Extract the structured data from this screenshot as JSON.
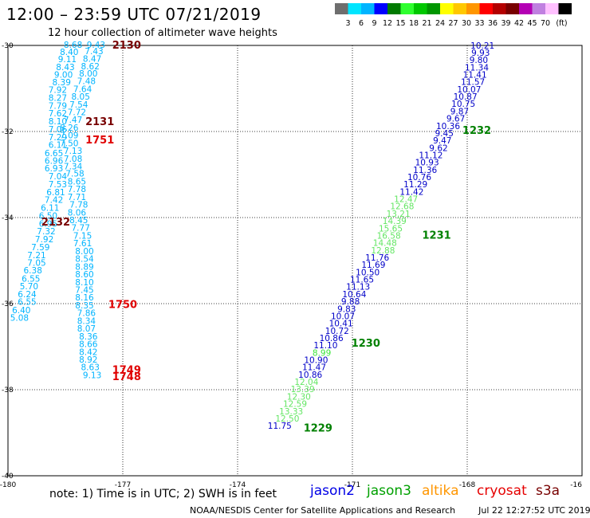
{
  "header": {
    "title": "12:00 – 23:59 UTC 07/21/2019",
    "subtitle": "12 hour collection of altimeter wave heights"
  },
  "colorbar": {
    "colors": [
      "#6e6e6e",
      "#00e5ff",
      "#00b4ff",
      "#0000ff",
      "#007a00",
      "#2fff2f",
      "#00c800",
      "#009600",
      "#ffff00",
      "#ffc800",
      "#ff9600",
      "#ff0000",
      "#b40000",
      "#780000",
      "#b400b4",
      "#c080e0",
      "#ffc0ff",
      "#000000"
    ],
    "labels": [
      "3",
      "6",
      "9",
      "12",
      "15",
      "18",
      "21",
      "24",
      "27",
      "30",
      "33",
      "36",
      "39",
      "42",
      "45",
      "70",
      "(ft)"
    ]
  },
  "axes": {
    "lon_ticks": [
      "-180",
      "-177",
      "-174",
      "-171",
      "-168",
      "-16"
    ],
    "lat_ticks": [
      "-30",
      "-32",
      "-34",
      "-36",
      "-38",
      "-40"
    ]
  },
  "tracks": [
    {
      "sat": "s3a",
      "color": "#00b4ff",
      "points": [
        {
          "lat": -30.06,
          "lon": -178.3,
          "v": "8.68"
        },
        {
          "lat": -30.22,
          "lon": -178.4,
          "v": "8.40"
        },
        {
          "lat": -30.39,
          "lon": -178.45,
          "v": "9.11"
        },
        {
          "lat": -30.57,
          "lon": -178.5,
          "v": "8.43"
        },
        {
          "lat": -30.75,
          "lon": -178.55,
          "v": "9.00"
        },
        {
          "lat": -30.93,
          "lon": -178.6,
          "v": "8.39"
        },
        {
          "lat": -31.1,
          "lon": -178.7,
          "v": "7.92"
        },
        {
          "lat": -31.29,
          "lon": -178.7,
          "v": "8.27"
        },
        {
          "lat": -31.47,
          "lon": -178.7,
          "v": "7.79"
        },
        {
          "lat": -31.65,
          "lon": -178.7,
          "v": "7.62"
        },
        {
          "lat": -31.83,
          "lon": -178.7,
          "v": "8.10"
        },
        {
          "lat": -32.02,
          "lon": -178.7,
          "v": "7.06"
        },
        {
          "lat": -32.2,
          "lon": -178.7,
          "v": "7.29"
        },
        {
          "lat": -32.38,
          "lon": -178.7,
          "v": "6.11"
        },
        {
          "lat": -32.57,
          "lon": -178.8,
          "v": "6.65"
        },
        {
          "lat": -32.75,
          "lon": -178.8,
          "v": "6.96"
        },
        {
          "lat": -32.93,
          "lon": -178.8,
          "v": "6.93"
        },
        {
          "lat": -33.11,
          "lon": -178.7,
          "v": "7.04"
        },
        {
          "lat": -33.3,
          "lon": -178.7,
          "v": "7.53"
        },
        {
          "lat": -33.48,
          "lon": -178.75,
          "v": "6.81"
        },
        {
          "lat": -33.66,
          "lon": -178.8,
          "v": "7.42"
        },
        {
          "lat": -33.84,
          "lon": -178.9,
          "v": "6.11"
        },
        {
          "lat": -34.03,
          "lon": -178.95,
          "v": "6.50"
        },
        {
          "lat": -34.21,
          "lon": -178.95,
          "v": "6.95"
        },
        {
          "lat": -34.39,
          "lon": -179.0,
          "v": "7.32"
        },
        {
          "lat": -34.57,
          "lon": -179.05,
          "v": "7.92"
        },
        {
          "lat": -34.76,
          "lon": -179.15,
          "v": "7.59"
        },
        {
          "lat": -34.94,
          "lon": -179.25,
          "v": "7.21"
        },
        {
          "lat": -35.12,
          "lon": -179.25,
          "v": "7.05"
        },
        {
          "lat": -35.3,
          "lon": -179.35,
          "v": "6.38"
        },
        {
          "lat": -35.49,
          "lon": -179.4,
          "v": "6.55"
        },
        {
          "lat": -35.67,
          "lon": -179.45,
          "v": "5.70"
        },
        {
          "lat": -35.85,
          "lon": -179.5,
          "v": "6.24"
        },
        {
          "lat": -36.03,
          "lon": -179.5,
          "v": "6.55"
        },
        {
          "lat": -36.22,
          "lon": -179.65,
          "v": "6.40"
        },
        {
          "lat": -36.4,
          "lon": -179.7,
          "v": "5.08"
        }
      ]
    },
    {
      "sat": "s3a",
      "color": "#00b4ff",
      "points": [
        {
          "lat": -30.06,
          "lon": -177.7,
          "v": "9.43"
        },
        {
          "lat": -30.2,
          "lon": -177.75,
          "v": "7.43"
        },
        {
          "lat": -30.38,
          "lon": -177.8,
          "v": "8.47"
        },
        {
          "lat": -30.56,
          "lon": -177.85,
          "v": "8.62"
        },
        {
          "lat": -30.72,
          "lon": -177.9,
          "v": "8.00"
        },
        {
          "lat": -30.9,
          "lon": -177.95,
          "v": "7.48"
        },
        {
          "lat": -31.08,
          "lon": -178.05,
          "v": "7.64"
        },
        {
          "lat": -31.26,
          "lon": -178.1,
          "v": "8.05"
        },
        {
          "lat": -31.44,
          "lon": -178.15,
          "v": "7.54"
        },
        {
          "lat": -31.62,
          "lon": -178.2,
          "v": "7.72"
        },
        {
          "lat": -31.8,
          "lon": -178.3,
          "v": "7.47"
        },
        {
          "lat": -31.98,
          "lon": -178.4,
          "v": "8.26"
        },
        {
          "lat": -32.16,
          "lon": -178.4,
          "v": "7.09"
        },
        {
          "lat": -32.34,
          "lon": -178.4,
          "v": "7.50"
        },
        {
          "lat": -32.52,
          "lon": -178.3,
          "v": "7.13"
        },
        {
          "lat": -32.7,
          "lon": -178.3,
          "v": "7.08"
        },
        {
          "lat": -32.88,
          "lon": -178.3,
          "v": "7.34"
        },
        {
          "lat": -33.05,
          "lon": -178.25,
          "v": "7.58"
        },
        {
          "lat": -33.23,
          "lon": -178.2,
          "v": "8.65"
        },
        {
          "lat": -33.41,
          "lon": -178.2,
          "v": "7.78"
        },
        {
          "lat": -33.59,
          "lon": -178.2,
          "v": "7.71"
        },
        {
          "lat": -33.77,
          "lon": -178.15,
          "v": "7.78"
        },
        {
          "lat": -33.95,
          "lon": -178.2,
          "v": "8.06"
        },
        {
          "lat": -34.13,
          "lon": -178.15,
          "v": "8.45"
        },
        {
          "lat": -34.31,
          "lon": -178.1,
          "v": "7.77"
        },
        {
          "lat": -34.49,
          "lon": -178.05,
          "v": "7.15"
        },
        {
          "lat": -34.67,
          "lon": -178.05,
          "v": "7.61"
        },
        {
          "lat": -34.85,
          "lon": -178.0,
          "v": "8.00"
        },
        {
          "lat": -35.03,
          "lon": -178.0,
          "v": "8.54"
        },
        {
          "lat": -35.21,
          "lon": -178.0,
          "v": "8.89"
        },
        {
          "lat": -35.39,
          "lon": -178.0,
          "v": "8.60"
        },
        {
          "lat": -35.57,
          "lon": -178.0,
          "v": "8.10"
        },
        {
          "lat": -35.75,
          "lon": -178.0,
          "v": "7.45"
        },
        {
          "lat": -35.93,
          "lon": -178.0,
          "v": "8.16"
        },
        {
          "lat": -36.11,
          "lon": -178.0,
          "v": "8.35"
        },
        {
          "lat": -36.29,
          "lon": -177.95,
          "v": "7.86"
        },
        {
          "lat": -36.47,
          "lon": -177.95,
          "v": "8.34"
        },
        {
          "lat": -36.65,
          "lon": -177.95,
          "v": "8.07"
        },
        {
          "lat": -36.83,
          "lon": -177.9,
          "v": "8.36"
        },
        {
          "lat": -37.01,
          "lon": -177.9,
          "v": "8.66"
        },
        {
          "lat": -37.19,
          "lon": -177.9,
          "v": "8.42"
        },
        {
          "lat": -37.37,
          "lon": -177.9,
          "v": "8.92"
        },
        {
          "lat": -37.55,
          "lon": -177.85,
          "v": "8.63"
        },
        {
          "lat": -37.73,
          "lon": -177.8,
          "v": "9.13"
        }
      ]
    },
    {
      "sat": "jason2",
      "color": "#0000c8",
      "points": [
        {
          "lat": -30.07,
          "lon": -167.6,
          "v": "10.21"
        },
        {
          "lat": -30.24,
          "lon": -167.65,
          "v": "9.93"
        },
        {
          "lat": -30.41,
          "lon": -167.7,
          "v": "9.80"
        },
        {
          "lat": -30.58,
          "lon": -167.75,
          "v": "11.34"
        },
        {
          "lat": -30.75,
          "lon": -167.8,
          "v": "11.41"
        },
        {
          "lat": -30.92,
          "lon": -167.85,
          "v": "11.57"
        },
        {
          "lat": -31.09,
          "lon": -167.95,
          "v": "10.07"
        },
        {
          "lat": -31.26,
          "lon": -168.05,
          "v": "10.87"
        },
        {
          "lat": -31.43,
          "lon": -168.1,
          "v": "10.75"
        },
        {
          "lat": -31.6,
          "lon": -168.2,
          "v": "9.87"
        },
        {
          "lat": -31.77,
          "lon": -168.3,
          "v": "9.67"
        },
        {
          "lat": -31.94,
          "lon": -168.5,
          "v": "10.36"
        },
        {
          "lat": -32.11,
          "lon": -168.6,
          "v": "9.45"
        },
        {
          "lat": -32.28,
          "lon": -168.65,
          "v": "9.47"
        },
        {
          "lat": -32.45,
          "lon": -168.75,
          "v": "9.62"
        },
        {
          "lat": -32.62,
          "lon": -168.95,
          "v": "11.12"
        },
        {
          "lat": -32.79,
          "lon": -169.05,
          "v": "10.93"
        },
        {
          "lat": -32.96,
          "lon": -169.1,
          "v": "11.36"
        },
        {
          "lat": -33.13,
          "lon": -169.25,
          "v": "10.76"
        },
        {
          "lat": -33.3,
          "lon": -169.35,
          "v": "11.29"
        },
        {
          "lat": -33.47,
          "lon": -169.45,
          "v": "11.42"
        }
      ]
    },
    {
      "sat": "jason3",
      "color": "#64e664",
      "points": [
        {
          "lat": -33.64,
          "lon": -169.6,
          "v": "12.47"
        },
        {
          "lat": -33.81,
          "lon": -169.7,
          "v": "12.68"
        },
        {
          "lat": -33.98,
          "lon": -169.8,
          "v": "13.21"
        },
        {
          "lat": -34.15,
          "lon": -169.9,
          "v": "14.39"
        },
        {
          "lat": -34.32,
          "lon": -170.0,
          "v": "15.65"
        },
        {
          "lat": -34.49,
          "lon": -170.05,
          "v": "16.58"
        },
        {
          "lat": -34.66,
          "lon": -170.15,
          "v": "14.48"
        },
        {
          "lat": -34.83,
          "lon": -170.2,
          "v": "12.88"
        }
      ]
    },
    {
      "sat": "jason2",
      "color": "#0000c8",
      "points": [
        {
          "lat": -35.0,
          "lon": -170.35,
          "v": "11.76"
        },
        {
          "lat": -35.17,
          "lon": -170.45,
          "v": "11.69"
        },
        {
          "lat": -35.34,
          "lon": -170.6,
          "v": "10.50"
        },
        {
          "lat": -35.51,
          "lon": -170.75,
          "v": "11.65"
        },
        {
          "lat": -35.68,
          "lon": -170.85,
          "v": "11.13"
        },
        {
          "lat": -35.85,
          "lon": -170.95,
          "v": "10.64"
        },
        {
          "lat": -36.02,
          "lon": -171.05,
          "v": "9.88"
        },
        {
          "lat": -36.19,
          "lon": -171.15,
          "v": "9.83"
        },
        {
          "lat": -36.36,
          "lon": -171.25,
          "v": "10.07"
        },
        {
          "lat": -36.53,
          "lon": -171.3,
          "v": "10.41"
        },
        {
          "lat": -36.7,
          "lon": -171.4,
          "v": "10.72"
        },
        {
          "lat": -36.87,
          "lon": -171.55,
          "v": "10.86"
        },
        {
          "lat": -37.04,
          "lon": -171.7,
          "v": "11.10"
        }
      ]
    },
    {
      "sat": "jason3",
      "color": "#3ce63c",
      "points": [
        {
          "lat": -37.21,
          "lon": -171.8,
          "v": "8.99"
        }
      ]
    },
    {
      "sat": "jason2",
      "color": "#0000c8",
      "points": [
        {
          "lat": -37.38,
          "lon": -171.95,
          "v": "10.90"
        },
        {
          "lat": -37.55,
          "lon": -172.0,
          "v": "11.47"
        },
        {
          "lat": -37.72,
          "lon": -172.1,
          "v": "10.86"
        }
      ]
    },
    {
      "sat": "jason3",
      "color": "#64e664",
      "points": [
        {
          "lat": -37.89,
          "lon": -172.2,
          "v": "12.04"
        },
        {
          "lat": -38.06,
          "lon": -172.3,
          "v": "13.39"
        },
        {
          "lat": -38.23,
          "lon": -172.4,
          "v": "12.30"
        },
        {
          "lat": -38.4,
          "lon": -172.5,
          "v": "12.59"
        },
        {
          "lat": -38.57,
          "lon": -172.6,
          "v": "13.33"
        },
        {
          "lat": -38.74,
          "lon": -172.7,
          "v": "12.50"
        }
      ]
    },
    {
      "sat": "jason2",
      "color": "#0000c8",
      "points": [
        {
          "lat": -38.91,
          "lon": -172.9,
          "v": "11.75"
        }
      ]
    }
  ],
  "time_labels": [
    {
      "text": "2130",
      "lat": -30.0,
      "lon": -176.9,
      "color": "#780000"
    },
    {
      "text": "2131",
      "lat": -31.78,
      "lon": -177.6,
      "color": "#780000"
    },
    {
      "text": "1751",
      "lat": -32.2,
      "lon": -177.6,
      "color": "#e00000"
    },
    {
      "text": "2132",
      "lat": -34.11,
      "lon": -178.75,
      "color": "#780000"
    },
    {
      "text": "1750",
      "lat": -36.03,
      "lon": -177.0,
      "color": "#e00000"
    },
    {
      "text": "1749",
      "lat": -37.55,
      "lon": -176.9,
      "color": "#e00000"
    },
    {
      "text": "1748",
      "lat": -37.7,
      "lon": -176.9,
      "color": "#e00000"
    },
    {
      "text": "1232",
      "lat": -31.98,
      "lon": -167.75,
      "color": "#008000"
    },
    {
      "text": "1231",
      "lat": -34.42,
      "lon": -168.8,
      "color": "#008000"
    },
    {
      "text": "1230",
      "lat": -36.93,
      "lon": -170.65,
      "color": "#008000"
    },
    {
      "text": "1229",
      "lat": -38.9,
      "lon": -171.9,
      "color": "#008000"
    }
  ],
  "footer": {
    "note": "note:  1) Time is in UTC;  2) SWH is in feet",
    "satellites": [
      {
        "name": "jason2",
        "color": "#0000e6"
      },
      {
        "name": "jason3",
        "color": "#00a000"
      },
      {
        "name": "altika",
        "color": "#ff9600"
      },
      {
        "name": "cryosat",
        "color": "#e60000"
      },
      {
        "name": "s3a",
        "color": "#780000"
      }
    ],
    "credit": "NOAA/NESDIS Center for Satellite Applications and Research",
    "timestamp": "Jul 22 12:27:52 UTC 2019"
  }
}
